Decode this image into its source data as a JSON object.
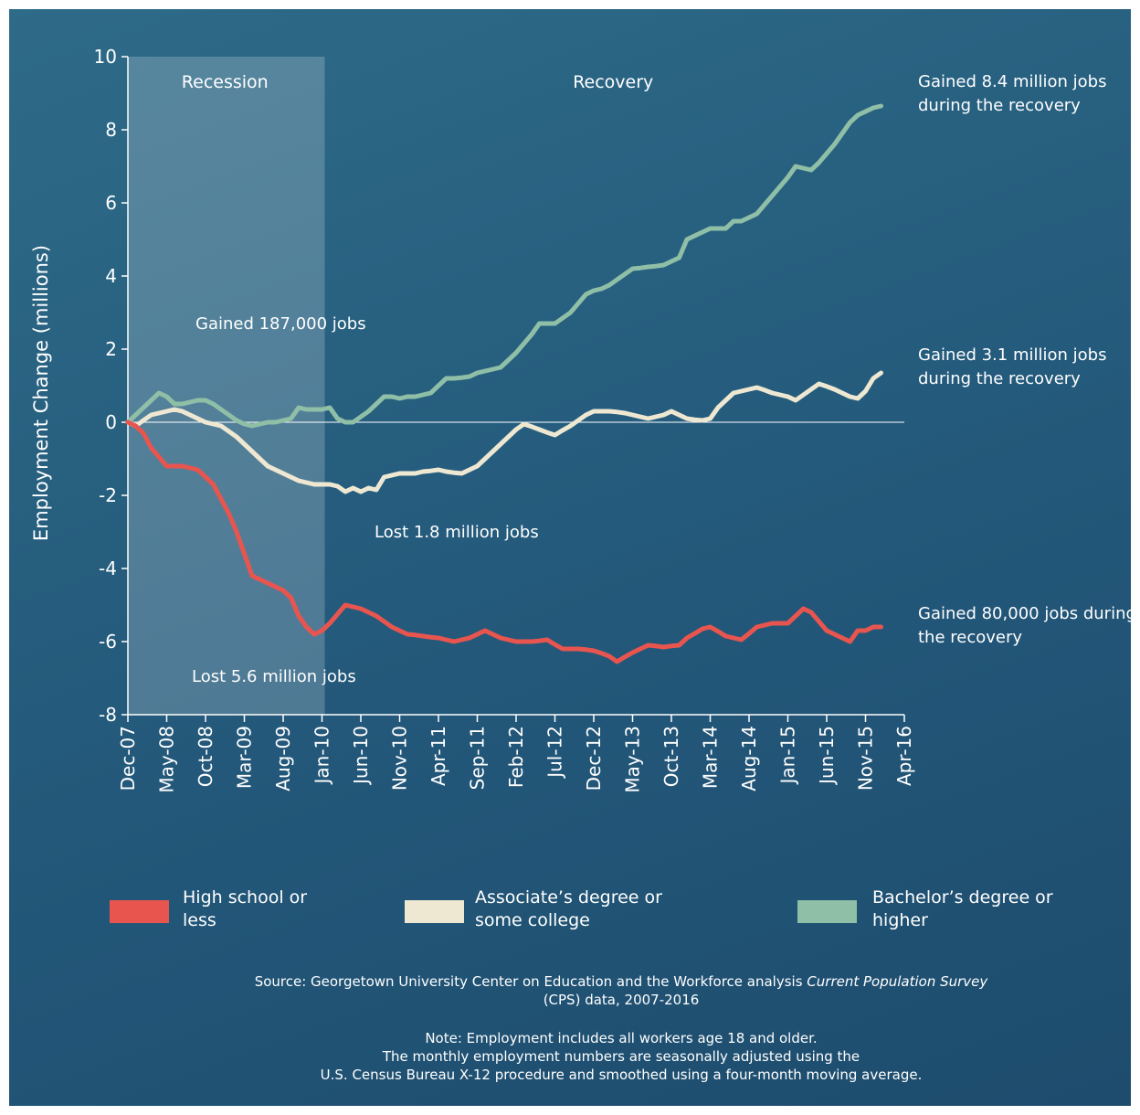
{
  "chart_data": {
    "type": "line",
    "y_label": "Employment Change (millions)",
    "categories": [
      "Dec-07",
      null,
      null,
      null,
      null,
      "May-08",
      null,
      null,
      null,
      null,
      "Oct-08",
      null,
      null,
      null,
      null,
      "Mar-09",
      null,
      null,
      null,
      null,
      "Aug-09",
      null,
      null,
      null,
      null,
      "Jan-10",
      null,
      null,
      null,
      null,
      "Jun-10",
      null,
      null,
      null,
      null,
      "Nov-10",
      null,
      null,
      null,
      null,
      "Apr-11",
      null,
      null,
      null,
      null,
      "Sep-11",
      null,
      null,
      null,
      null,
      "Feb-12",
      null,
      null,
      null,
      null,
      "Jul-12",
      null,
      null,
      null,
      null,
      "Dec-12",
      null,
      null,
      null,
      null,
      "May-13",
      null,
      null,
      null,
      null,
      "Oct-13",
      null,
      null,
      null,
      null,
      "Mar-14",
      null,
      null,
      null,
      null,
      "Aug-14",
      null,
      null,
      null,
      null,
      "Jan-15",
      null,
      null,
      null,
      null,
      "Jun-15",
      null,
      null,
      null,
      null,
      "Nov-15",
      null,
      null,
      null,
      null,
      "Apr-16"
    ],
    "series": [
      {
        "name": "High school or less",
        "color": "#e8554f",
        "values": [
          0,
          -0.1,
          -0.3,
          -0.7,
          -0.95,
          -1.2,
          -1.2,
          -1.2,
          -1.25,
          -1.3,
          -1.5,
          -1.7,
          -2.1,
          -2.5,
          -3.0,
          -3.6,
          -4.2,
          -4.3,
          -4.4,
          -4.5,
          -4.6,
          -4.8,
          -5.3,
          -5.6,
          -5.8,
          -5.7,
          -5.5,
          -5.25,
          -5.0,
          -5.05,
          -5.1,
          -5.2,
          -5.3,
          -5.45,
          -5.6,
          -5.7,
          -5.8,
          -5.82,
          -5.85,
          -5.88,
          -5.9,
          -5.95,
          -6.0,
          -5.95,
          -5.9,
          -5.8,
          -5.7,
          -5.8,
          -5.9,
          -5.95,
          -6.0,
          -6.0,
          -6.0,
          -5.98,
          -5.95,
          -6.08,
          -6.2,
          -6.2,
          -6.2,
          -6.22,
          -6.25,
          -6.32,
          -6.4,
          -6.55,
          -6.42,
          -6.3,
          -6.2,
          -6.1,
          -6.12,
          -6.15,
          -6.12,
          -6.1,
          -5.9,
          -5.78,
          -5.65,
          -5.6,
          -5.72,
          -5.85,
          -5.9,
          -5.95,
          -5.78,
          -5.6,
          -5.55,
          -5.5,
          -5.5,
          -5.5,
          -5.3,
          -5.1,
          -5.2,
          -5.45,
          -5.7,
          -5.8,
          -5.9,
          -6.0,
          -5.7,
          -5.7,
          -5.6,
          -5.6,
          null,
          null,
          null
        ]
      },
      {
        "name": "Associate’s degree or some college",
        "color": "#eee8d2",
        "values": [
          0,
          -0.1,
          0.05,
          0.2,
          0.25,
          0.3,
          0.35,
          0.3,
          0.2,
          0.1,
          0,
          -0.05,
          -0.1,
          -0.25,
          -0.4,
          -0.6,
          -0.8,
          -1.0,
          -1.2,
          -1.3,
          -1.4,
          -1.5,
          -1.6,
          -1.65,
          -1.7,
          -1.7,
          -1.7,
          -1.75,
          -1.9,
          -1.8,
          -1.9,
          -1.8,
          -1.85,
          -1.5,
          -1.45,
          -1.4,
          -1.4,
          -1.4,
          -1.35,
          -1.33,
          -1.3,
          -1.35,
          -1.38,
          -1.4,
          -1.3,
          -1.2,
          -1.0,
          -0.8,
          -0.6,
          -0.4,
          -0.2,
          -0.05,
          -0.12,
          -0.2,
          -0.28,
          -0.35,
          -0.22,
          -0.1,
          0.05,
          0.2,
          0.3,
          0.3,
          0.3,
          0.28,
          0.25,
          0.2,
          0.15,
          0.1,
          0.15,
          0.2,
          0.3,
          0.2,
          0.1,
          0.07,
          0.05,
          0.1,
          0.4,
          0.6,
          0.8,
          0.85,
          0.9,
          0.95,
          0.88,
          0.8,
          0.75,
          0.7,
          0.6,
          0.75,
          0.9,
          1.05,
          0.98,
          0.9,
          0.8,
          0.7,
          0.65,
          0.85,
          1.2,
          1.35,
          null,
          null,
          null
        ]
      },
      {
        "name": "Bachelor’s degree or higher",
        "color": "#8fbfa6",
        "values": [
          0,
          0.2,
          0.4,
          0.6,
          0.8,
          0.7,
          0.5,
          0.5,
          0.55,
          0.6,
          0.6,
          0.5,
          0.35,
          0.2,
          0.05,
          -0.05,
          -0.1,
          -0.05,
          0,
          0,
          0.05,
          0.1,
          0.4,
          0.35,
          0.35,
          0.35,
          0.4,
          0.1,
          0,
          0,
          0.15,
          0.3,
          0.5,
          0.7,
          0.7,
          0.65,
          0.7,
          0.7,
          0.75,
          0.8,
          1.0,
          1.2,
          1.2,
          1.22,
          1.25,
          1.35,
          1.4,
          1.45,
          1.5,
          1.7,
          1.9,
          2.15,
          2.4,
          2.7,
          2.7,
          2.7,
          2.85,
          3.0,
          3.25,
          3.5,
          3.6,
          3.65,
          3.75,
          3.9,
          4.05,
          4.2,
          4.22,
          4.25,
          4.27,
          4.3,
          4.4,
          4.5,
          5.0,
          5.1,
          5.2,
          5.3,
          5.3,
          5.3,
          5.5,
          5.5,
          5.6,
          5.7,
          5.95,
          6.2,
          6.45,
          6.7,
          7.0,
          6.95,
          6.9,
          7.1,
          7.35,
          7.6,
          7.9,
          8.2,
          8.4,
          8.5,
          8.6,
          8.65,
          null,
          null,
          null
        ]
      }
    ],
    "ylim": [
      -8,
      10
    ],
    "yticks": [
      -8,
      -6,
      -4,
      -2,
      0,
      2,
      4,
      6,
      8,
      10
    ],
    "shading": {
      "label": "Recession",
      "from": "Dec-07",
      "to": "Jan-10"
    },
    "period_label": "Recovery",
    "annotations": [
      "Gained 187,000 jobs",
      "Lost 1.8 million jobs",
      "Lost 5.6 million jobs",
      "Gained 8.4 million jobs during the recovery",
      "Gained 3.1 million jobs during the recovery",
      "Gained 80,000 jobs during the recovery"
    ],
    "source": [
      {
        "text": "Source: Georgetown University Center on Education and the Workforce analysis ",
        "italic": false
      },
      {
        "text": "Current Population Survey",
        "italic": true
      },
      {
        "text": " (CPS) data, 2007-2016",
        "italic": false
      }
    ],
    "note": [
      "Note: Employment includes all workers age 18 and older.",
      "The monthly employment numbers are seasonally adjusted using the",
      "U.S. Census Bureau X-12 procedure and smoothed using a four-month moving average."
    ]
  }
}
